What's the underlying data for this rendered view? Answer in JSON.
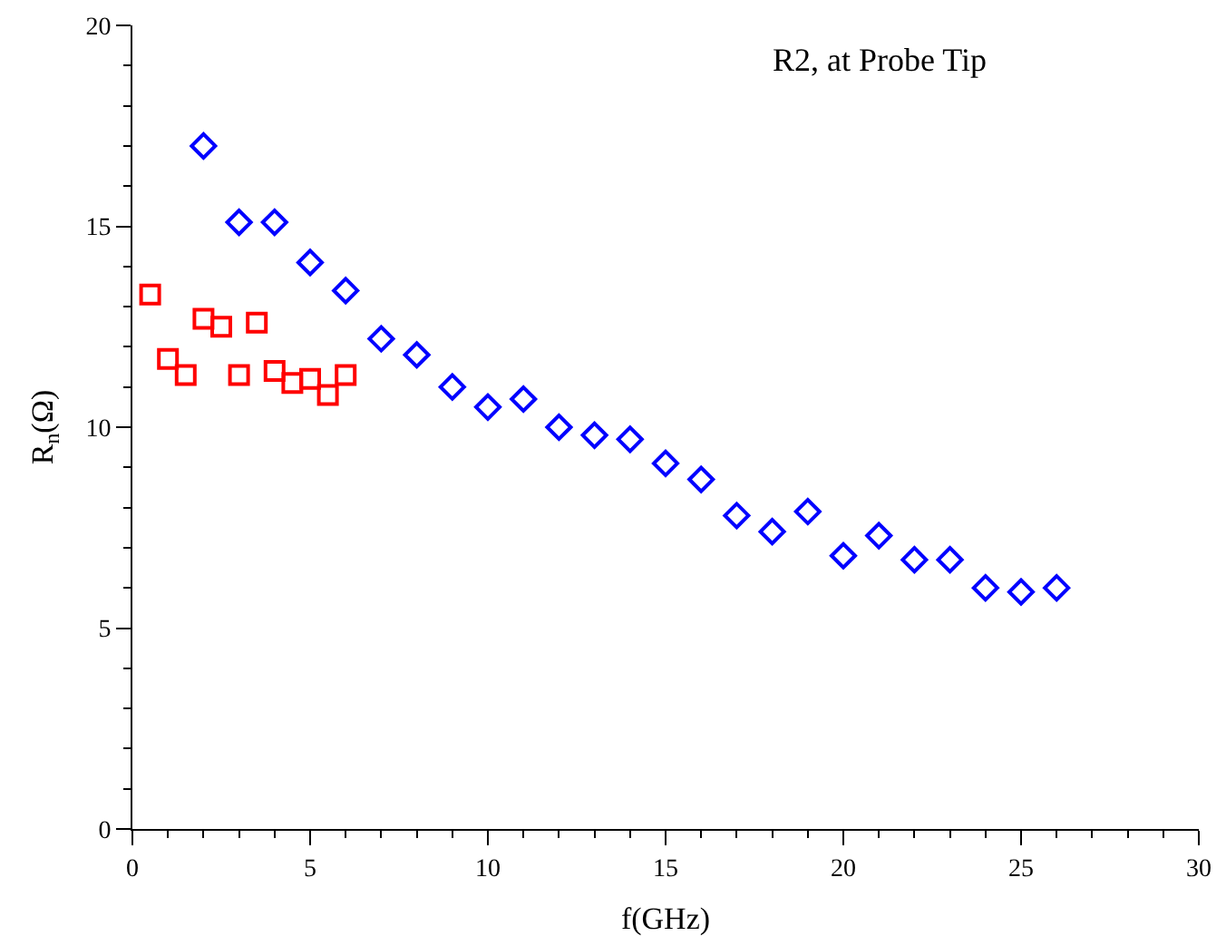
{
  "chart_data": {
    "type": "scatter",
    "xlabel": "f(GHz)",
    "ylabel": "R$_{n}$(Ω)",
    "annotations": [
      "R2, at Probe Tip"
    ],
    "xlim": [
      0,
      30
    ],
    "xticks": [
      0,
      5,
      10,
      15,
      20,
      25,
      30
    ],
    "ylim": [
      0,
      20
    ],
    "yticks": [
      0,
      5,
      10,
      15,
      20
    ],
    "grid": false,
    "series": [
      {
        "color": "#0000ff",
        "marker": "diamond",
        "x": [
          2,
          3,
          4,
          5,
          6,
          7,
          8,
          9,
          10,
          11,
          12,
          13,
          14,
          15,
          16,
          17,
          18,
          19,
          20,
          21,
          22,
          23,
          24,
          25,
          26
        ],
        "values": [
          17.0,
          15.1,
          15.1,
          14.1,
          13.4,
          12.2,
          11.8,
          11.0,
          10.5,
          10.7,
          10.0,
          9.8,
          9.7,
          9.1,
          8.7,
          7.8,
          7.4,
          7.9,
          6.8,
          7.3,
          6.7,
          6.7,
          6.0,
          5.9,
          6.0
        ]
      },
      {
        "color": "#ff0000",
        "marker": "square",
        "x": [
          0.5,
          1,
          1.5,
          2,
          2.5,
          3,
          3.5,
          4,
          4.5,
          5,
          5.5,
          6
        ],
        "values": [
          13.3,
          11.7,
          11.3,
          12.7,
          12.5,
          11.3,
          12.6,
          11.4,
          11.1,
          11.2,
          10.8,
          11.3
        ]
      }
    ]
  }
}
